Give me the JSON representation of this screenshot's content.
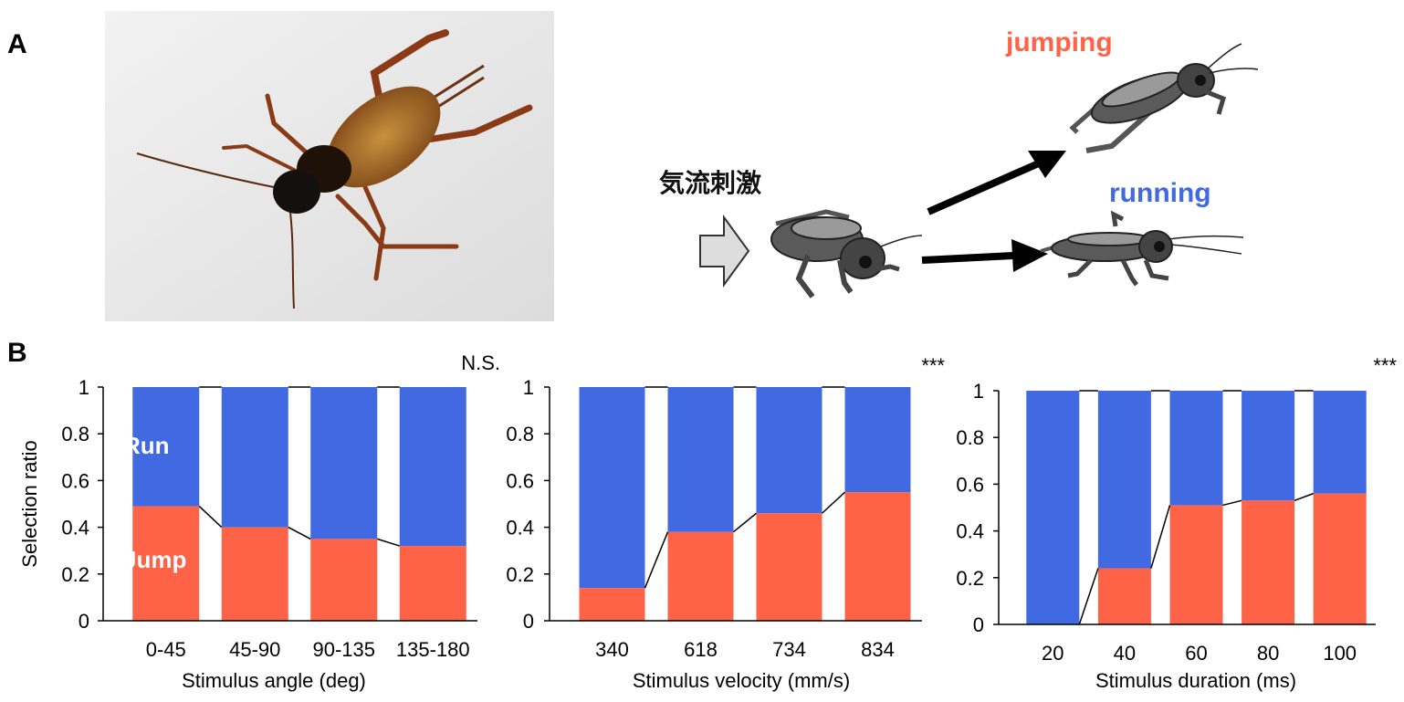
{
  "panels": {
    "a": "A",
    "b": "B"
  },
  "diagram": {
    "stimulus_label": "気流刺激",
    "jumping_label": "jumping",
    "running_label": "running",
    "colors": {
      "jump": "#FF6347",
      "run": "#4169E1",
      "insect_dark": "#555555",
      "insect_light": "#9a9a9a",
      "arrow_fill": "#dddddd"
    },
    "icons": [
      "cricket-photo",
      "airflow-arrow-icon",
      "cricket-icon",
      "arrow-icon"
    ]
  },
  "legend": {
    "run": "Run",
    "jump": "Jump"
  },
  "colors": {
    "jump": "#FF6347",
    "run": "#4169E1"
  },
  "chart_data": [
    {
      "type": "bar",
      "stacked": true,
      "xlabel": "Stimulus angle (deg)",
      "ylabel": "Selection ratio",
      "ylim": [
        0,
        1
      ],
      "yticks": [
        "0",
        "0.2",
        "0.4",
        "0.6",
        "0.8",
        "1"
      ],
      "significance": "N.S.",
      "categories": [
        "0-45",
        "45-90",
        "90-135",
        "135-180"
      ],
      "series": [
        {
          "name": "Jump",
          "values": [
            0.49,
            0.4,
            0.35,
            0.32
          ]
        },
        {
          "name": "Run",
          "values": [
            0.51,
            0.6,
            0.65,
            0.68
          ]
        }
      ]
    },
    {
      "type": "bar",
      "stacked": true,
      "xlabel": "Stimulus velocity (mm/s)",
      "ylabel": "",
      "ylim": [
        0,
        1
      ],
      "yticks": [
        "0",
        "0.2",
        "0.4",
        "0.6",
        "0.8",
        "1"
      ],
      "significance": "***",
      "categories": [
        "340",
        "618",
        "734",
        "834"
      ],
      "series": [
        {
          "name": "",
          "values": [
            0.14,
            0.38,
            0.46,
            0.55
          ]
        },
        {
          "name": "",
          "values": [
            0.86,
            0.62,
            0.54,
            0.45
          ]
        }
      ]
    },
    {
      "type": "bar",
      "stacked": true,
      "xlabel": "Stimulus duration (ms)",
      "ylabel": "",
      "ylim": [
        0,
        1
      ],
      "yticks": [
        "0",
        "0.2",
        "0.4",
        "0.6",
        "0.8",
        "1"
      ],
      "significance": "***",
      "categories": [
        "20",
        "40",
        "60",
        "80",
        "100"
      ],
      "series": [
        {
          "name": "",
          "values": [
            0.0,
            0.24,
            0.51,
            0.53,
            0.56
          ]
        },
        {
          "name": "",
          "values": [
            1.0,
            0.76,
            0.49,
            0.47,
            0.44
          ]
        }
      ]
    }
  ]
}
